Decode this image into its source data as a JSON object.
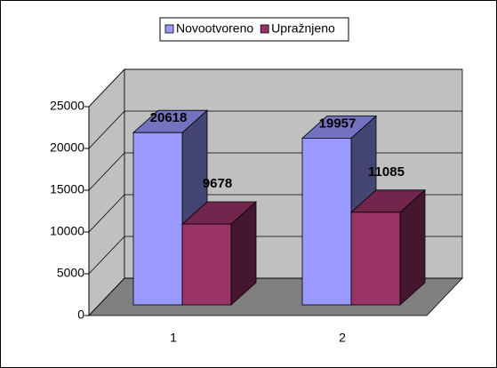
{
  "chart_data": {
    "type": "bar3d",
    "categories": [
      "1",
      "2"
    ],
    "series": [
      {
        "name": "Novootvoreno",
        "color": "#9999ff",
        "values": [
          20618,
          19957
        ]
      },
      {
        "name": "Upražnjeno",
        "color": "#993366",
        "values": [
          9678,
          11085
        ]
      }
    ],
    "ylim": [
      0,
      25000
    ],
    "yticks": [
      0,
      5000,
      10000,
      15000,
      20000,
      25000
    ],
    "grid": true,
    "legend": "top"
  }
}
